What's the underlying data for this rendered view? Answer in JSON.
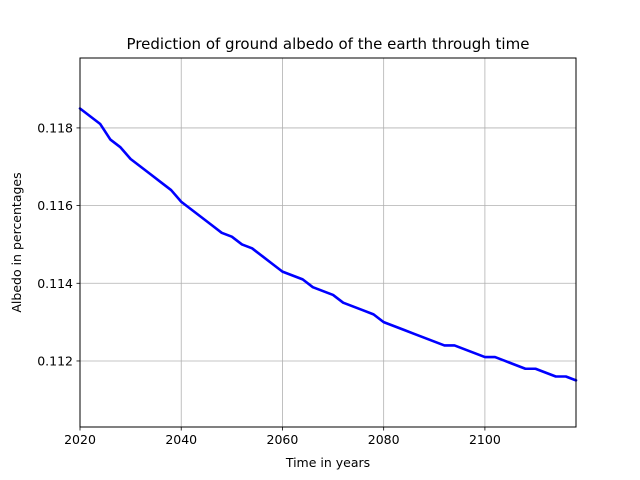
{
  "chart_data": {
    "type": "line",
    "title": "Prediction of ground albedo of the earth through time",
    "xlabel": "Time in years",
    "ylabel": "Albedo in percentages",
    "xlim": [
      2020,
      2118
    ],
    "ylim": [
      0.1103,
      0.1198
    ],
    "x_ticks": [
      2020,
      2040,
      2060,
      2080,
      2100
    ],
    "x_tick_labels": [
      "2020",
      "2040",
      "2060",
      "2080",
      "2100"
    ],
    "y_ticks": [
      0.112,
      0.114,
      0.116,
      0.118
    ],
    "y_tick_labels": [
      "0.112",
      "0.114",
      "0.116",
      "0.118"
    ],
    "grid": true,
    "legend": "none",
    "series": [
      {
        "color": "#0000ff",
        "x": [
          2020,
          2022,
          2024,
          2026,
          2028,
          2030,
          2032,
          2034,
          2036,
          2038,
          2040,
          2042,
          2044,
          2046,
          2048,
          2050,
          2052,
          2054,
          2056,
          2058,
          2060,
          2062,
          2064,
          2066,
          2068,
          2070,
          2072,
          2074,
          2076,
          2078,
          2080,
          2082,
          2084,
          2086,
          2088,
          2090,
          2092,
          2094,
          2096,
          2098,
          2100,
          2102,
          2104,
          2106,
          2108,
          2110,
          2112,
          2114,
          2116,
          2118
        ],
        "values": [
          0.1185,
          0.1183,
          0.1181,
          0.1177,
          0.1175,
          0.1172,
          0.117,
          0.1168,
          0.1166,
          0.1164,
          0.1161,
          0.1159,
          0.1157,
          0.1155,
          0.1153,
          0.1152,
          0.115,
          0.1149,
          0.1147,
          0.1145,
          0.1143,
          0.1142,
          0.1141,
          0.1139,
          0.1138,
          0.1137,
          0.1135,
          0.1134,
          0.1133,
          0.1132,
          0.113,
          0.1129,
          0.1128,
          0.1127,
          0.1126,
          0.1125,
          0.1124,
          0.1124,
          0.1123,
          0.1122,
          0.1121,
          0.1121,
          0.112,
          0.1119,
          0.1118,
          0.1118,
          0.1117,
          0.1116,
          0.1116,
          0.1115
        ]
      }
    ]
  }
}
